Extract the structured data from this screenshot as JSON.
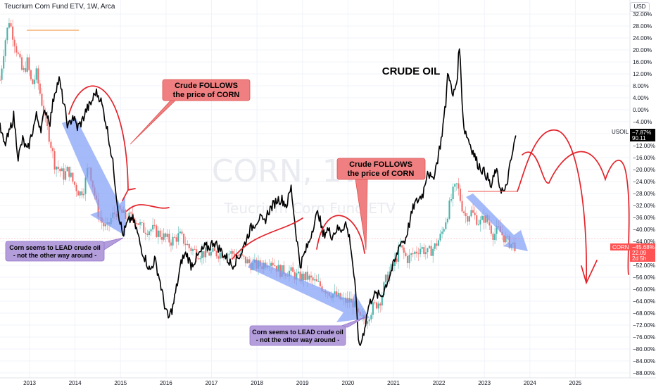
{
  "header": {
    "title": "Teucrium Corn Fund ETV, 1W, Arca",
    "currency": "USD"
  },
  "watermark": {
    "symbol": "CORN, 1W",
    "name": "Teucrium Corn Fund ETV"
  },
  "colors": {
    "up": "#26a69a",
    "down": "#ef5350",
    "crude": "#000000",
    "projection": "#e3242b",
    "arrow": "#7f9cf5",
    "callout_red": "#ef7f80",
    "callout_purple": "#b39ddb"
  },
  "annotations": {
    "crude_oil_label": "CRUDE OIL",
    "follows_1": [
      "Crude FOLLOWS",
      "the price of CORN"
    ],
    "follows_2": [
      "Crude FOLLOWS",
      "the price of CORN"
    ],
    "lead_1": [
      "Corn seems to LEAD crude oil",
      "- not the other way around -"
    ],
    "lead_2": [
      "Corn seems to LEAD crude oil",
      "- not the other way around -"
    ]
  },
  "price_tags": {
    "usoil": {
      "symbol": "USOIL",
      "change": "−7.87%",
      "price": "90.11"
    },
    "corn": {
      "symbol": "CORN",
      "change": "−45.68%",
      "price": "22.09",
      "countdown": "2d 5h"
    }
  },
  "chart_data": {
    "type": "line",
    "ylabel": "",
    "xlabel": "",
    "y_scale": "percent",
    "ylim": [
      -88,
      34
    ],
    "y_ticks": [
      "32.00%",
      "28.00%",
      "24.00%",
      "20.00%",
      "16.00%",
      "12.00%",
      "8.00%",
      "4.00%",
      "0.00%",
      "−4.00%",
      "−8.00%",
      "−12.00%",
      "−16.00%",
      "−20.00%",
      "−24.00%",
      "−28.00%",
      "−32.00%",
      "−36.00%",
      "−40.00%",
      "−44.00%",
      "−48.00%",
      "−52.00%",
      "−56.00%",
      "−60.00%",
      "−64.00%",
      "−68.00%",
      "−72.00%",
      "−76.00%",
      "−80.00%",
      "−84.00%",
      "−88.00%"
    ],
    "x_ticks": [
      "2013",
      "2014",
      "2015",
      "2016",
      "2017",
      "2018",
      "2019",
      "2020",
      "2021",
      "2022",
      "2023",
      "2024",
      "2025"
    ],
    "xlim": [
      2012.35,
      2026.2
    ],
    "series": [
      {
        "name": "CORN",
        "type": "candlestick",
        "points": [
          [
            2012.35,
            10
          ],
          [
            2012.45,
            22
          ],
          [
            2012.55,
            30
          ],
          [
            2012.65,
            24
          ],
          [
            2012.75,
            18
          ],
          [
            2012.85,
            12
          ],
          [
            2012.95,
            16
          ],
          [
            2013.05,
            8
          ],
          [
            2013.15,
            12
          ],
          [
            2013.25,
            4
          ],
          [
            2013.35,
            -4
          ],
          [
            2013.45,
            -10
          ],
          [
            2013.55,
            -18
          ],
          [
            2013.65,
            -20
          ],
          [
            2013.75,
            -22
          ],
          [
            2013.85,
            -20
          ],
          [
            2013.95,
            -24
          ],
          [
            2014.1,
            -28
          ],
          [
            2014.2,
            -26
          ],
          [
            2014.3,
            -18
          ],
          [
            2014.4,
            -26
          ],
          [
            2014.5,
            -34
          ],
          [
            2014.6,
            -38
          ],
          [
            2014.7,
            -40
          ],
          [
            2014.8,
            -36
          ],
          [
            2014.9,
            -34
          ],
          [
            2015.0,
            -34
          ],
          [
            2015.1,
            -36
          ],
          [
            2015.3,
            -36
          ],
          [
            2015.5,
            -40
          ],
          [
            2015.7,
            -40
          ],
          [
            2015.9,
            -42
          ],
          [
            2016.1,
            -44
          ],
          [
            2016.3,
            -42
          ],
          [
            2016.5,
            -46
          ],
          [
            2016.7,
            -48
          ],
          [
            2016.9,
            -48
          ],
          [
            2017.1,
            -48
          ],
          [
            2017.3,
            -48
          ],
          [
            2017.5,
            -48
          ],
          [
            2017.7,
            -50
          ],
          [
            2017.9,
            -52
          ],
          [
            2018.1,
            -52
          ],
          [
            2018.3,
            -50
          ],
          [
            2018.5,
            -54
          ],
          [
            2018.7,
            -54
          ],
          [
            2018.9,
            -56
          ],
          [
            2019.1,
            -56
          ],
          [
            2019.3,
            -58
          ],
          [
            2019.5,
            -60
          ],
          [
            2019.7,
            -62
          ],
          [
            2019.9,
            -64
          ],
          [
            2020.1,
            -64
          ],
          [
            2020.25,
            -70
          ],
          [
            2020.4,
            -70
          ],
          [
            2020.55,
            -66
          ],
          [
            2020.7,
            -64
          ],
          [
            2020.85,
            -56
          ],
          [
            2021.0,
            -52
          ],
          [
            2021.15,
            -46
          ],
          [
            2021.3,
            -50
          ],
          [
            2021.45,
            -48
          ],
          [
            2021.6,
            -46
          ],
          [
            2021.75,
            -48
          ],
          [
            2021.9,
            -46
          ],
          [
            2022.05,
            -42
          ],
          [
            2022.2,
            -34
          ],
          [
            2022.3,
            -28
          ],
          [
            2022.4,
            -25
          ],
          [
            2022.5,
            -32
          ],
          [
            2022.6,
            -36
          ],
          [
            2022.7,
            -34
          ],
          [
            2022.8,
            -36
          ],
          [
            2022.9,
            -38
          ],
          [
            2023.0,
            -36
          ],
          [
            2023.1,
            -38
          ],
          [
            2023.2,
            -42
          ],
          [
            2023.3,
            -40
          ],
          [
            2023.4,
            -42
          ],
          [
            2023.5,
            -44
          ],
          [
            2023.6,
            -45
          ],
          [
            2023.7,
            -45.68
          ]
        ]
      },
      {
        "name": "USOIL",
        "type": "line",
        "points": [
          [
            2012.35,
            -6
          ],
          [
            2012.45,
            -12
          ],
          [
            2012.55,
            -8
          ],
          [
            2012.65,
            -2
          ],
          [
            2012.75,
            -16
          ],
          [
            2012.85,
            -10
          ],
          [
            2012.95,
            -14
          ],
          [
            2013.05,
            -8
          ],
          [
            2013.15,
            -2
          ],
          [
            2013.25,
            -6
          ],
          [
            2013.35,
            0
          ],
          [
            2013.45,
            -4
          ],
          [
            2013.55,
            6
          ],
          [
            2013.65,
            10
          ],
          [
            2013.75,
            2
          ],
          [
            2013.85,
            -6
          ],
          [
            2013.95,
            -2
          ],
          [
            2014.05,
            -6
          ],
          [
            2014.15,
            -4
          ],
          [
            2014.25,
            0
          ],
          [
            2014.35,
            2
          ],
          [
            2014.45,
            6
          ],
          [
            2014.55,
            4
          ],
          [
            2014.65,
            -2
          ],
          [
            2014.75,
            -10
          ],
          [
            2014.85,
            -20
          ],
          [
            2014.95,
            -34
          ],
          [
            2015.05,
            -42
          ],
          [
            2015.15,
            -38
          ],
          [
            2015.25,
            -36
          ],
          [
            2015.35,
            -40
          ],
          [
            2015.45,
            -46
          ],
          [
            2015.55,
            -50
          ],
          [
            2015.65,
            -54
          ],
          [
            2015.75,
            -50
          ],
          [
            2015.85,
            -56
          ],
          [
            2015.95,
            -64
          ],
          [
            2016.05,
            -70
          ],
          [
            2016.15,
            -66
          ],
          [
            2016.25,
            -58
          ],
          [
            2016.35,
            -50
          ],
          [
            2016.45,
            -48
          ],
          [
            2016.55,
            -52
          ],
          [
            2016.65,
            -50
          ],
          [
            2016.75,
            -48
          ],
          [
            2016.85,
            -46
          ],
          [
            2016.95,
            -46
          ],
          [
            2017.05,
            -44
          ],
          [
            2017.15,
            -46
          ],
          [
            2017.25,
            -48
          ],
          [
            2017.35,
            -50
          ],
          [
            2017.45,
            -52
          ],
          [
            2017.55,
            -50
          ],
          [
            2017.65,
            -48
          ],
          [
            2017.75,
            -44
          ],
          [
            2017.85,
            -40
          ],
          [
            2017.95,
            -38
          ],
          [
            2018.05,
            -36
          ],
          [
            2018.15,
            -38
          ],
          [
            2018.25,
            -34
          ],
          [
            2018.35,
            -32
          ],
          [
            2018.45,
            -30
          ],
          [
            2018.55,
            -30
          ],
          [
            2018.65,
            -32
          ],
          [
            2018.75,
            -26
          ],
          [
            2018.85,
            -40
          ],
          [
            2018.95,
            -52
          ],
          [
            2019.05,
            -48
          ],
          [
            2019.15,
            -44
          ],
          [
            2019.25,
            -38
          ],
          [
            2019.35,
            -34
          ],
          [
            2019.45,
            -42
          ],
          [
            2019.55,
            -40
          ],
          [
            2019.65,
            -42
          ],
          [
            2019.75,
            -40
          ],
          [
            2019.85,
            -40
          ],
          [
            2019.95,
            -38
          ],
          [
            2020.05,
            -44
          ],
          [
            2020.15,
            -58
          ],
          [
            2020.25,
            -80
          ],
          [
            2020.35,
            -74
          ],
          [
            2020.45,
            -66
          ],
          [
            2020.55,
            -62
          ],
          [
            2020.65,
            -62
          ],
          [
            2020.75,
            -62
          ],
          [
            2020.85,
            -58
          ],
          [
            2020.95,
            -54
          ],
          [
            2021.05,
            -50
          ],
          [
            2021.15,
            -44
          ],
          [
            2021.25,
            -44
          ],
          [
            2021.35,
            -38
          ],
          [
            2021.45,
            -32
          ],
          [
            2021.55,
            -30
          ],
          [
            2021.65,
            -28
          ],
          [
            2021.75,
            -20
          ],
          [
            2021.85,
            -24
          ],
          [
            2021.95,
            -18
          ],
          [
            2022.05,
            -10
          ],
          [
            2022.15,
            2
          ],
          [
            2022.2,
            14
          ],
          [
            2022.3,
            4
          ],
          [
            2022.4,
            10
          ],
          [
            2022.45,
            22
          ],
          [
            2022.5,
            6
          ],
          [
            2022.55,
            -6
          ],
          [
            2022.65,
            -10
          ],
          [
            2022.75,
            -14
          ],
          [
            2022.85,
            -18
          ],
          [
            2022.95,
            -20
          ],
          [
            2023.05,
            -22
          ],
          [
            2023.15,
            -26
          ],
          [
            2023.25,
            -20
          ],
          [
            2023.35,
            -26
          ],
          [
            2023.45,
            -28
          ],
          [
            2023.55,
            -20
          ],
          [
            2023.65,
            -12
          ],
          [
            2023.7,
            -7.87
          ]
        ]
      }
    ]
  }
}
